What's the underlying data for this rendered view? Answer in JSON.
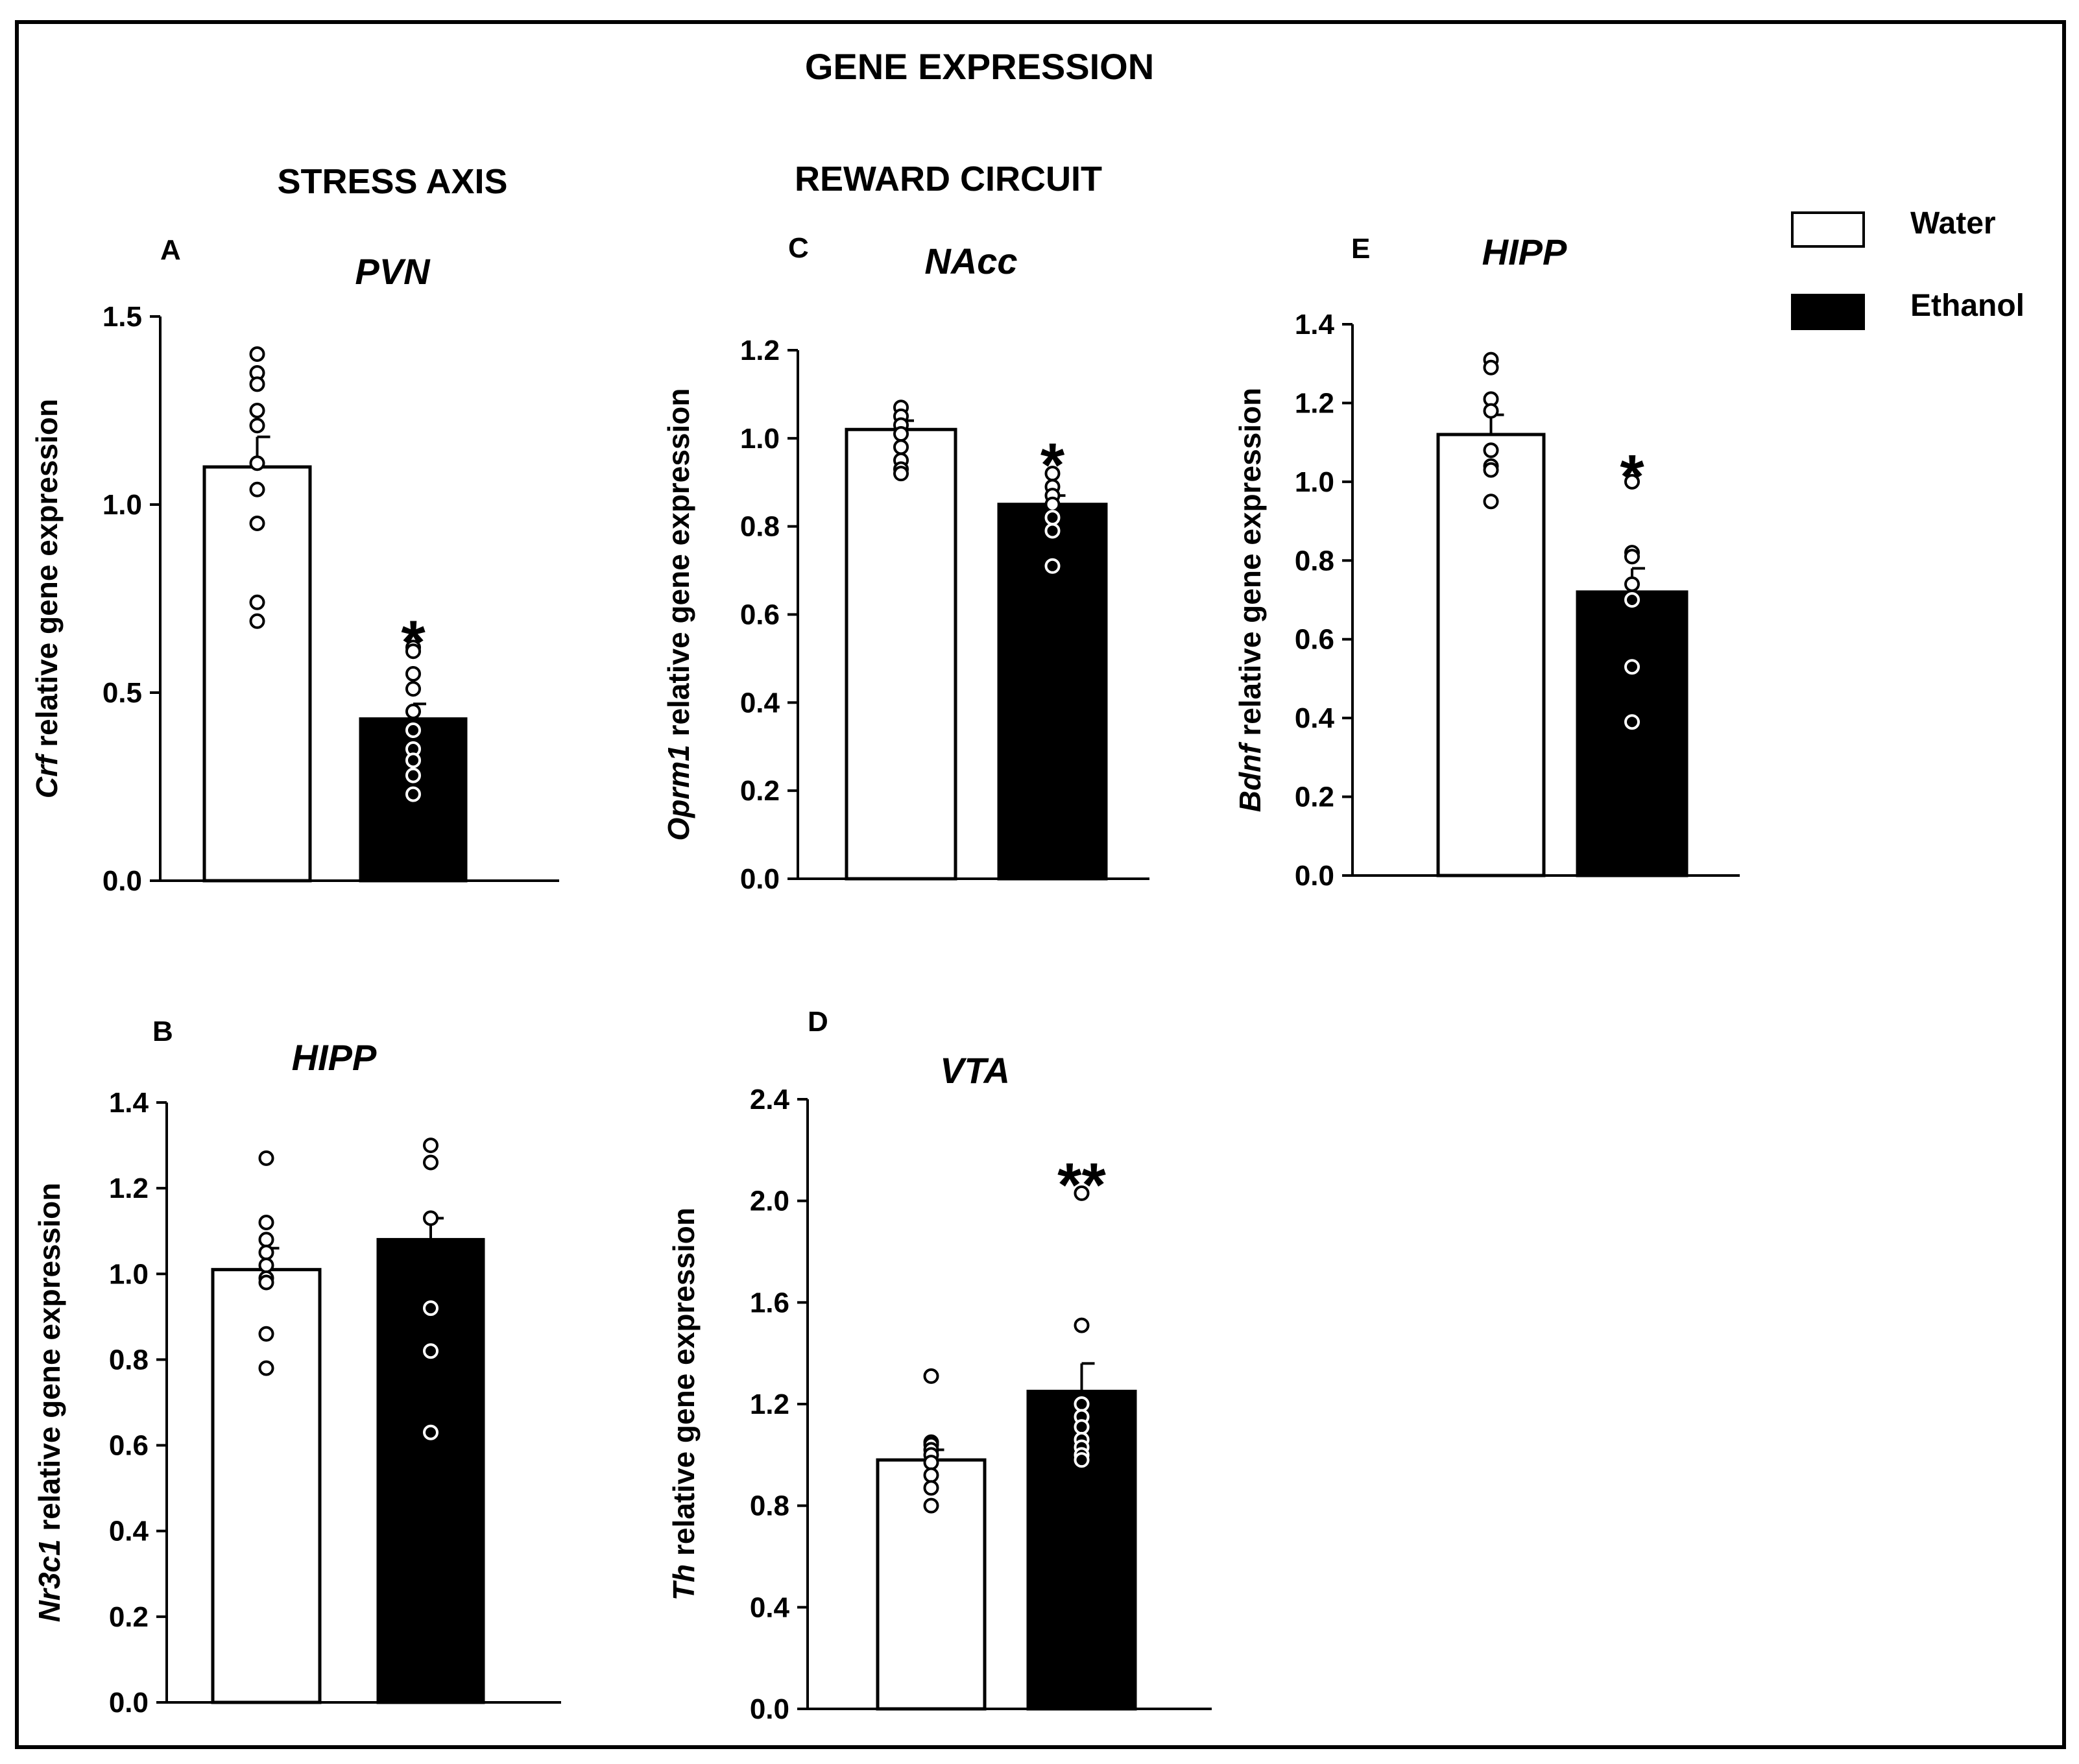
{
  "figure_title": "GENE EXPRESSION",
  "sections": {
    "stress": "STRESS AXIS",
    "reward": "REWARD CIRCUIT"
  },
  "legend": {
    "items": [
      {
        "label": "Water",
        "fill": "#ffffff"
      },
      {
        "label": "Ethanol",
        "fill": "#000000"
      }
    ]
  },
  "colors": {
    "water": "#ffffff",
    "ethanol": "#000000",
    "axis": "#000000"
  },
  "chart_data": [
    {
      "type": "bar",
      "panel": "A",
      "region": "PVN",
      "ylabel_gene": "Crf",
      "ylabel_rest": " relative gene expression",
      "categories": [
        "Water",
        "Ethanol"
      ],
      "values": [
        1.1,
        0.43
      ],
      "sem": [
        0.08,
        0.04
      ],
      "points": [
        [
          1.4,
          1.35,
          1.32,
          1.25,
          1.21,
          1.11,
          1.04,
          0.95,
          0.74,
          0.69
        ],
        [
          0.62,
          0.61,
          0.55,
          0.51,
          0.45,
          0.4,
          0.35,
          0.32,
          0.28,
          0.23
        ]
      ],
      "ylim": [
        0,
        1.5
      ],
      "yticks": [
        "0.0",
        "0.5",
        "1.0",
        "1.5"
      ],
      "significance": [
        "",
        "*"
      ]
    },
    {
      "type": "bar",
      "panel": "B",
      "region": "HIPP",
      "ylabel_gene": "Nr3c1",
      "ylabel_rest": " relative gene expression",
      "categories": [
        "Water",
        "Ethanol"
      ],
      "values": [
        1.01,
        1.08
      ],
      "sem": [
        0.05,
        0.05
      ],
      "points": [
        [
          1.27,
          1.12,
          1.08,
          1.05,
          1.02,
          0.99,
          0.98,
          0.86,
          0.78
        ],
        [
          1.3,
          1.26,
          1.13,
          0.92,
          0.82,
          0.63
        ]
      ],
      "ylim": [
        0,
        1.4
      ],
      "yticks": [
        "0.0",
        "0.2",
        "0.4",
        "0.6",
        "0.8",
        "1.0",
        "1.2",
        "1.4"
      ],
      "significance": [
        "",
        ""
      ]
    },
    {
      "type": "bar",
      "panel": "C",
      "region": "NAcc",
      "ylabel_gene": "Oprm1",
      "ylabel_rest": " relative gene expression",
      "categories": [
        "Water",
        "Ethanol"
      ],
      "values": [
        1.02,
        0.85
      ],
      "sem": [
        0.02,
        0.02
      ],
      "points": [
        [
          1.07,
          1.05,
          1.03,
          1.01,
          0.98,
          0.95,
          0.93,
          0.92
        ],
        [
          0.92,
          0.89,
          0.87,
          0.85,
          0.82,
          0.79,
          0.71
        ]
      ],
      "ylim": [
        0,
        1.2
      ],
      "yticks": [
        "0.0",
        "0.2",
        "0.4",
        "0.6",
        "0.8",
        "1.0",
        "1.2"
      ],
      "significance": [
        "",
        "*"
      ]
    },
    {
      "type": "bar",
      "panel": "D",
      "region": "VTA",
      "ylabel_gene": "Th",
      "ylabel_rest": " relative gene expression",
      "categories": [
        "Water",
        "Ethanol"
      ],
      "values": [
        0.98,
        1.25
      ],
      "sem": [
        0.04,
        0.11
      ],
      "points": [
        [
          1.31,
          1.05,
          1.04,
          1.02,
          1.0,
          0.97,
          0.92,
          0.87,
          0.8
        ],
        [
          2.03,
          1.51,
          1.2,
          1.15,
          1.11,
          1.06,
          1.03,
          1.0,
          0.98
        ]
      ],
      "ylim": [
        0,
        2.4
      ],
      "yticks": [
        "0.0",
        "0.4",
        "0.8",
        "1.2",
        "1.6",
        "2.0",
        "2.4"
      ],
      "significance": [
        "",
        "**"
      ]
    },
    {
      "type": "bar",
      "panel": "E",
      "region": "HIPP",
      "ylabel_gene": "Bdnf",
      "ylabel_rest": "  relative gene expression",
      "categories": [
        "Water",
        "Ethanol"
      ],
      "values": [
        1.12,
        0.72
      ],
      "sem": [
        0.05,
        0.06
      ],
      "points": [
        [
          1.31,
          1.29,
          1.21,
          1.18,
          1.08,
          1.04,
          1.03,
          0.95
        ],
        [
          1.0,
          0.82,
          0.81,
          0.74,
          0.7,
          0.53,
          0.39
        ]
      ],
      "ylim": [
        0,
        1.4
      ],
      "yticks": [
        "0.0",
        "0.2",
        "0.4",
        "0.6",
        "0.8",
        "1.0",
        "1.2",
        "1.4"
      ],
      "significance": [
        "",
        "*"
      ]
    }
  ]
}
